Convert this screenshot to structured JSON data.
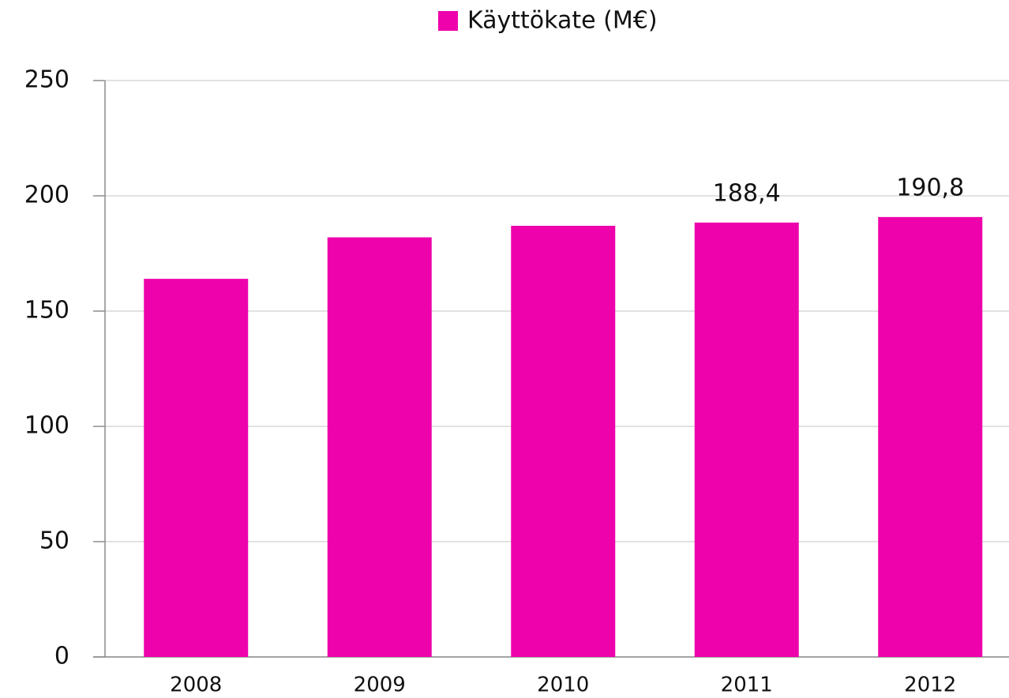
{
  "chart_data": {
    "type": "bar",
    "categories": [
      "2008",
      "2009",
      "2010",
      "2011",
      "2012"
    ],
    "series": [
      {
        "name": "Käyttökate (M€)",
        "color": "#ee02ab",
        "values": [
          164,
          182,
          187,
          188.4,
          190.8
        ],
        "value_labels": [
          null,
          null,
          null,
          "188,4",
          "190,8"
        ]
      }
    ],
    "ylim": [
      0,
      250
    ],
    "yticks": [
      0,
      50,
      100,
      150,
      200,
      250
    ],
    "grid": true,
    "legend": "top"
  }
}
